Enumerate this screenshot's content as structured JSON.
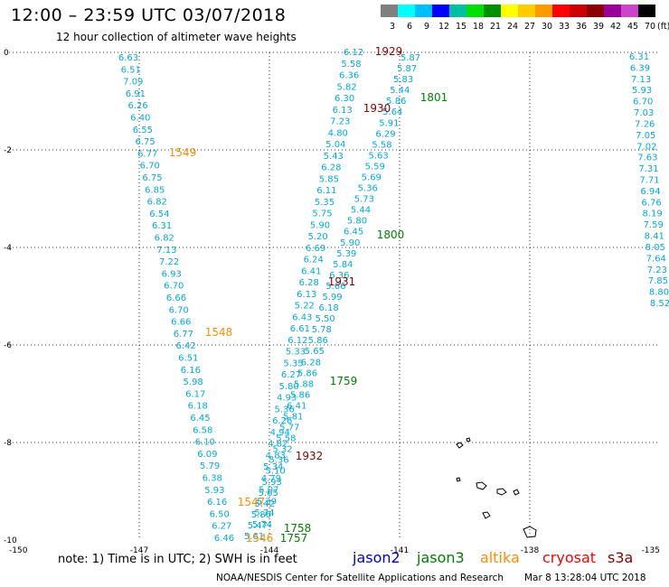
{
  "header": {
    "title": "12:00 – 23:59 UTC 03/07/2018",
    "subtitle": "12 hour collection of altimeter wave heights"
  },
  "colorbar": {
    "colors": [
      "#808080",
      "#00ffff",
      "#00bfff",
      "#0000ff",
      "#00c0a0",
      "#00e000",
      "#009000",
      "#ffff00",
      "#ffcc00",
      "#ff9900",
      "#ff0000",
      "#cc0000",
      "#8b0000",
      "#990099",
      "#cc44cc",
      "#000000"
    ],
    "labels": [
      "3",
      "6",
      "9",
      "12",
      "15",
      "18",
      "21",
      "24",
      "27",
      "30",
      "33",
      "36",
      "39",
      "42",
      "45",
      "70"
    ],
    "unit": "(ft)"
  },
  "map": {
    "x_ticks": [
      "-150",
      "-147",
      "-144",
      "-141",
      "-138",
      "-135"
    ],
    "y_ticks": [
      "0",
      "-2",
      "-4",
      "-6",
      "-8",
      "-10"
    ],
    "colors": {
      "jason2": "#0000cc",
      "jason3": "#008000",
      "altika": "#ff8c00",
      "cryosat": "#ff0000",
      "s3a": "#8b0000",
      "swh": "#00aadd"
    }
  },
  "tracks": {
    "track_a": [
      "6.63",
      "6.51",
      "7.09",
      "6.91",
      "6.26",
      "6.40",
      "6.55",
      "6.75",
      "6.77",
      "6.70",
      "6.75",
      "6.85",
      "6.82",
      "6.54",
      "6.31",
      "6.82",
      "7.13",
      "7.22",
      "6.93",
      "6.70",
      "6.66",
      "6.70",
      "6.66",
      "6.77",
      "6.42",
      "6.51",
      "6.16",
      "5.98",
      "6.17",
      "6.18",
      "6.45",
      "6.58",
      "6.10",
      "6.09",
      "5.79",
      "6.38",
      "5.93",
      "6.16",
      "6.50",
      "6.27",
      "6.46"
    ],
    "track_b": [
      "6.12",
      "5.58",
      "6.36",
      "5.82",
      "6.30",
      "6.13",
      "7.23",
      "4.80",
      "5.04",
      "5.43",
      "6.28",
      "5.85",
      "6.11",
      "5.35",
      "5.75",
      "5.90",
      "5.20",
      "6.69",
      "6.24",
      "6.41",
      "6.28",
      "6.13",
      "5.22",
      "6.43",
      "6.61",
      "6.12",
      "5.33",
      "5.35",
      "6.27",
      "5.80",
      "4.93",
      "5.36",
      "6.26",
      "4.94",
      "4.82",
      "4.83",
      "5.34",
      "4.79",
      "5.07",
      "5.39",
      "5.74",
      "5.74"
    ],
    "track_c": [
      "5.87",
      "5.87",
      "5.83",
      "5.44",
      "5.86",
      "5.64",
      "5.91",
      "6.29",
      "5.58",
      "5.63",
      "5.59",
      "5.69",
      "5.36",
      "5.73",
      "5.44",
      "5.80",
      "6.45",
      "5.90",
      "5.39",
      "5.84",
      "6.36",
      "5.66",
      "5.99",
      "6.18",
      "5.50",
      "5.78",
      "5.86",
      "5.65",
      "6.28",
      "5.86",
      "5.88",
      "5.86",
      "6.41",
      "5.81",
      "5.77",
      "5.58",
      "5.32",
      "5.36",
      "5.10",
      "5.93",
      "5.65",
      "5.42",
      "5.86",
      "5.47",
      "5.61"
    ],
    "track_d": [
      "6.31",
      "6.39",
      "7.13",
      "5.93",
      "6.70",
      "7.03",
      "7.26",
      "7.05",
      "7.02",
      "7.63",
      "7.31",
      "7.71",
      "6.94",
      "6.76",
      "8.19",
      "7.59",
      "8.41",
      "8.05",
      "7.64",
      "7.23",
      "7.85",
      "8.80",
      "8.52"
    ]
  },
  "time_labels": [
    {
      "text": "1929",
      "sat": "s3a"
    },
    {
      "text": "1801",
      "sat": "jason3"
    },
    {
      "text": "1930",
      "sat": "s3a"
    },
    {
      "text": "1549",
      "sat": "altika"
    },
    {
      "text": "1800",
      "sat": "jason3"
    },
    {
      "text": "1931",
      "sat": "s3a"
    },
    {
      "text": "1548",
      "sat": "altika"
    },
    {
      "text": "1759",
      "sat": "jason3"
    },
    {
      "text": "1932",
      "sat": "s3a"
    },
    {
      "text": "1547",
      "sat": "altika"
    },
    {
      "text": "1758",
      "sat": "jason3"
    },
    {
      "text": "1546",
      "sat": "altika"
    },
    {
      "text": "1757",
      "sat": "jason3"
    }
  ],
  "note": "note: 1) Time is in UTC; 2) SWH is in feet",
  "legend": [
    {
      "label": "jason2",
      "sat": "jason2"
    },
    {
      "label": "jason3",
      "sat": "jason3"
    },
    {
      "label": "altika",
      "sat": "altika"
    },
    {
      "label": "cryosat",
      "sat": "cryosat"
    },
    {
      "label": "s3a",
      "sat": "s3a"
    }
  ],
  "footer": {
    "center": "NOAA/NESDIS Center for Satellite Applications and Research",
    "time": "Mar  8 13:28:04 UTC 2018"
  }
}
